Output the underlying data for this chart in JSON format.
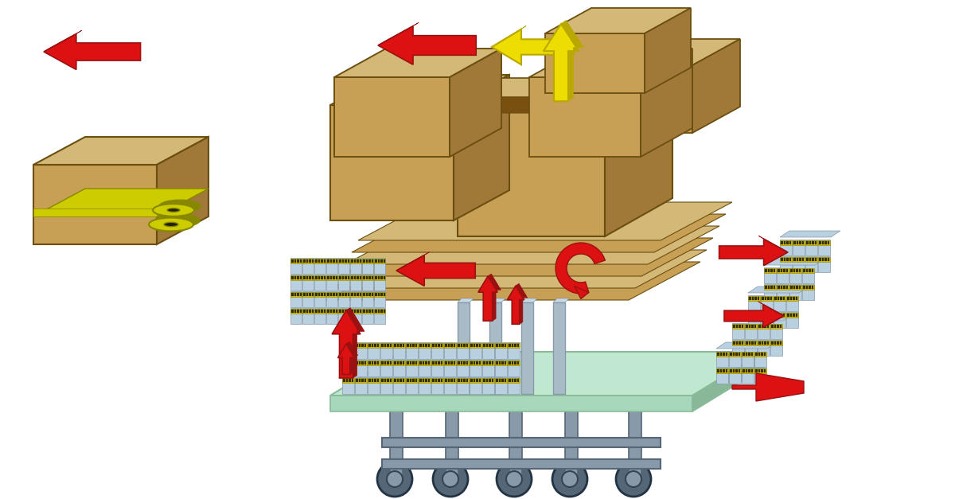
{
  "bg_color": "#ffffff",
  "card_face": "#c8a055",
  "card_top": "#d4b878",
  "card_side": "#a07838",
  "card_dark": "#7a5010",
  "card_outline": "#6B4F10",
  "arrow_red": "#dd1111",
  "arrow_red_dark": "#991111",
  "arrow_yellow": "#eedd00",
  "arrow_yellow_dark": "#b8a800",
  "tape_color": "#cccc00",
  "tape_dark": "#888800",
  "conv_color": "#8899aa",
  "conv_dark": "#556677",
  "plat_color": "#c0e8d0",
  "plat_edge": "#88bb99",
  "prod_blue": "#b8d0e0",
  "prod_blue_dark": "#8899aa",
  "prod_yellow": "#e8c000",
  "prod_dark": "#446644"
}
